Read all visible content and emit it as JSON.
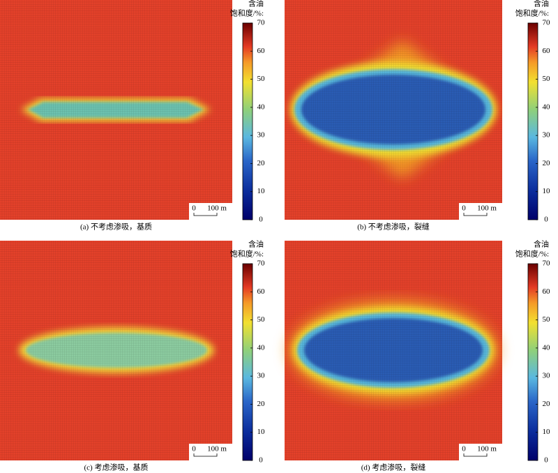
{
  "chart_data": [
    {
      "type": "heatmap",
      "caption": "(a) 不考虑渗吸，基质",
      "colorbar_title": [
        "含油",
        "饱和度/%:"
      ],
      "clim": [
        0,
        70
      ],
      "cticks": [
        0,
        10,
        20,
        30,
        40,
        50,
        60,
        70
      ],
      "scale_bar": [
        "0",
        "100 m"
      ]
    },
    {
      "type": "heatmap",
      "caption": "(b) 不考虑渗吸，裂缝",
      "colorbar_title": [
        "含油",
        "饱和度/%:"
      ],
      "clim": [
        0,
        70
      ],
      "cticks": [
        0,
        10,
        20,
        30,
        40,
        50,
        60,
        70
      ],
      "scale_bar": [
        "0",
        "100 m"
      ]
    },
    {
      "type": "heatmap",
      "caption": "(c) 考虑渗吸，基质",
      "colorbar_title": [
        "含油",
        "饱和度/%:"
      ],
      "clim": [
        0,
        70
      ],
      "cticks": [
        0,
        10,
        20,
        30,
        40,
        50,
        60,
        70
      ],
      "scale_bar": [
        "0",
        "100 m"
      ]
    },
    {
      "type": "heatmap",
      "caption": "(d) 考虑渗吸，裂缝",
      "colorbar_title": [
        "含油",
        "饱和度/%:"
      ],
      "clim": [
        0,
        70
      ],
      "cticks": [
        0,
        10,
        20,
        30,
        40,
        50,
        60,
        70
      ],
      "scale_bar": [
        "0",
        "100 m"
      ]
    }
  ]
}
